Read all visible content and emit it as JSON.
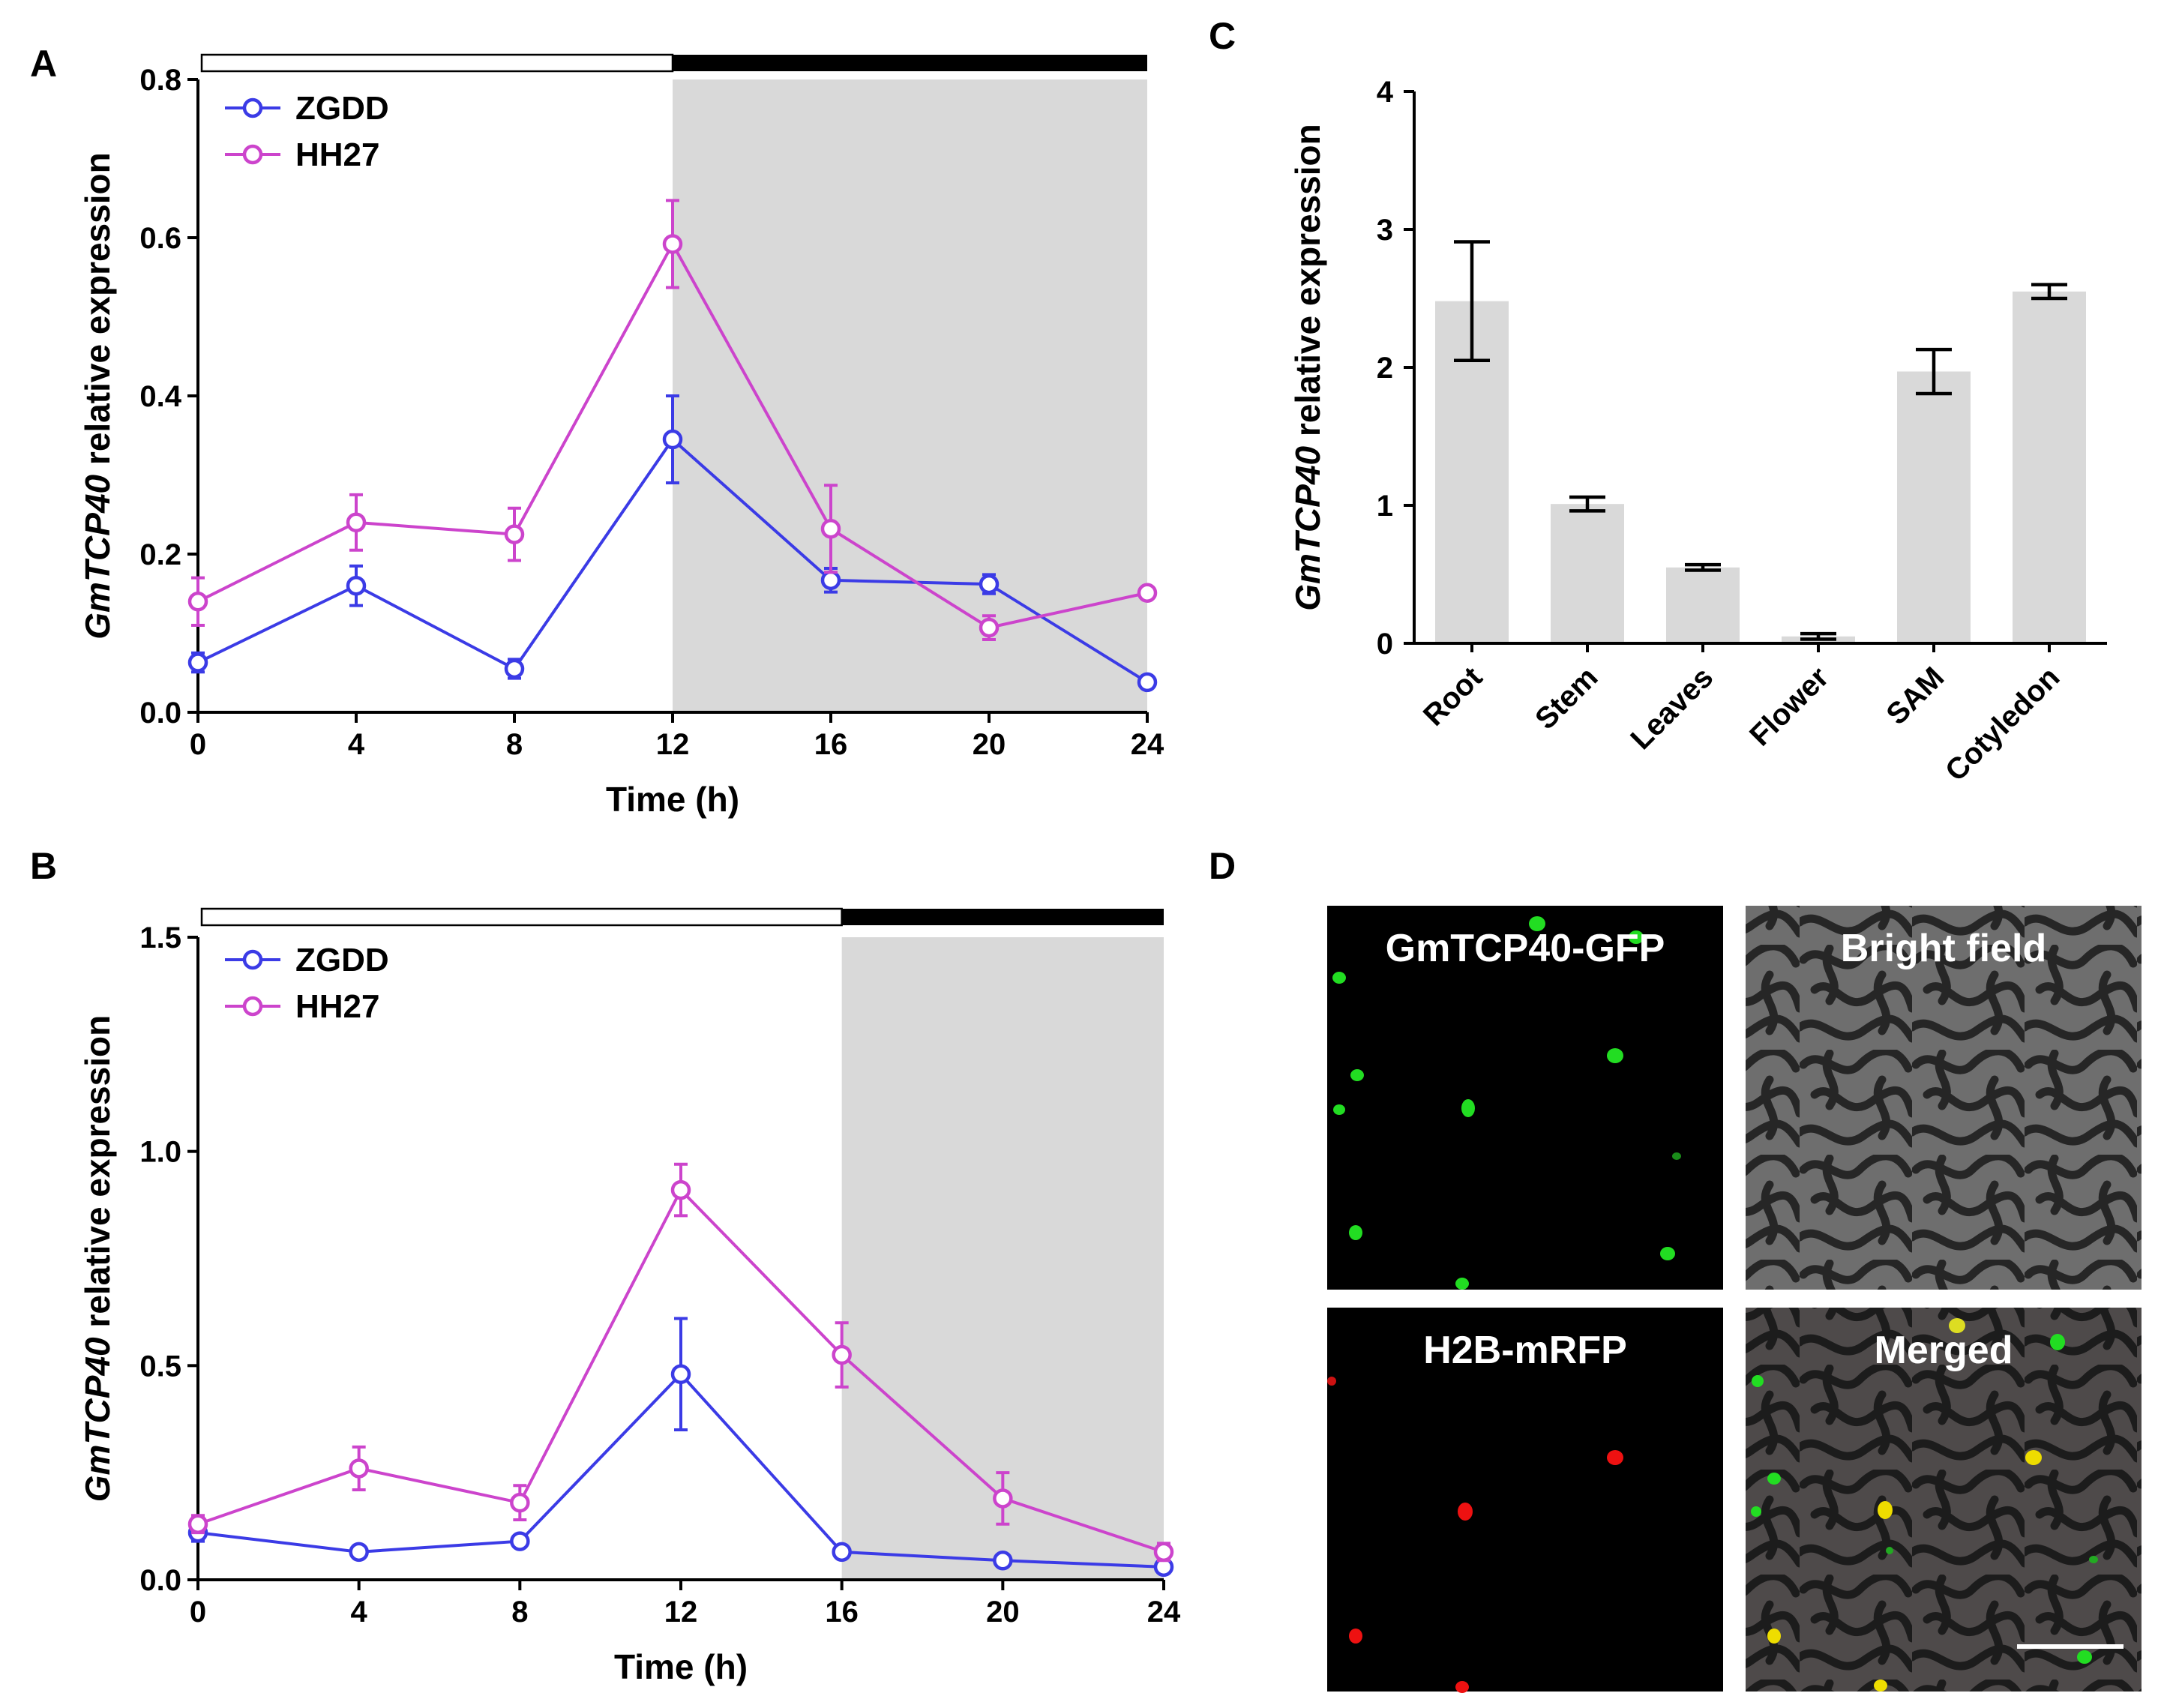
{
  "panels": {
    "A": "A",
    "B": "B",
    "C": "C",
    "D": "D"
  },
  "chart_data": [
    {
      "id": "A",
      "type": "line",
      "title": "",
      "xlabel": "Time (h)",
      "ylabel_italic": "GmTCP40",
      "ylabel_rest": " relative expression",
      "x": [
        0,
        4,
        8,
        12,
        16,
        20,
        24
      ],
      "xlim": [
        0,
        24
      ],
      "ylim": [
        0,
        0.8
      ],
      "xticks": [
        "0",
        "4",
        "8",
        "12",
        "16",
        "20",
        "24"
      ],
      "yticks": [
        "0.0",
        "0.2",
        "0.4",
        "0.6",
        "0.8"
      ],
      "dark_period_start": 12,
      "legend_position": "top-left",
      "series": [
        {
          "name": "ZGDD",
          "color": "#3b3be6",
          "values": [
            0.063,
            0.16,
            0.055,
            0.345,
            0.167,
            0.162,
            0.038
          ],
          "errors": [
            0.012,
            0.025,
            0.012,
            0.055,
            0.015,
            0.012,
            0.005
          ]
        },
        {
          "name": "HH27",
          "color": "#cc44cc",
          "values": [
            0.14,
            0.24,
            0.225,
            0.592,
            0.232,
            0.107,
            0.151
          ],
          "errors": [
            0.03,
            0.035,
            0.033,
            0.055,
            0.055,
            0.015,
            0.005
          ]
        }
      ]
    },
    {
      "id": "B",
      "type": "line",
      "title": "",
      "xlabel": "Time (h)",
      "ylabel_italic": "GmTCP40",
      "ylabel_rest": " relative expression",
      "x": [
        0,
        4,
        8,
        12,
        16,
        20,
        24
      ],
      "xlim": [
        0,
        24
      ],
      "ylim": [
        0,
        1.5
      ],
      "xticks": [
        "0",
        "4",
        "8",
        "12",
        "16",
        "20",
        "24"
      ],
      "yticks": [
        "0.0",
        "0.5",
        "1.0",
        "1.5"
      ],
      "dark_period_start": 16,
      "legend_position": "top-left",
      "series": [
        {
          "name": "ZGDD",
          "color": "#3b3be6",
          "values": [
            0.11,
            0.065,
            0.09,
            0.48,
            0.065,
            0.045,
            0.03
          ],
          "errors": [
            0.02,
            0.01,
            0.01,
            0.13,
            0.01,
            0.01,
            0.01
          ]
        },
        {
          "name": "HH27",
          "color": "#cc44cc",
          "values": [
            0.13,
            0.26,
            0.18,
            0.91,
            0.525,
            0.19,
            0.065
          ],
          "errors": [
            0.02,
            0.05,
            0.04,
            0.06,
            0.075,
            0.06,
            0.02
          ]
        }
      ]
    },
    {
      "id": "C",
      "type": "bar",
      "title": "",
      "xlabel": "",
      "ylabel_italic": "GmTCP40",
      "ylabel_rest": " relative expression",
      "categories": [
        "Root",
        "Stem",
        "Leaves",
        "Flower",
        "SAM",
        "Cotyledon"
      ],
      "values": [
        2.48,
        1.01,
        0.55,
        0.05,
        1.97,
        2.55
      ],
      "errors": [
        0.43,
        0.05,
        0.02,
        0.02,
        0.16,
        0.05
      ],
      "ylim": [
        0,
        4
      ],
      "yticks": [
        "0",
        "1",
        "2",
        "3",
        "4"
      ],
      "bar_color": "#d9d9d9"
    }
  ],
  "microscopy": {
    "gfp_label": "GmTCP40-GFP",
    "bright_label": "Bright field",
    "rfp_label": "H2B-mRFP",
    "merged_label": "Merged"
  }
}
